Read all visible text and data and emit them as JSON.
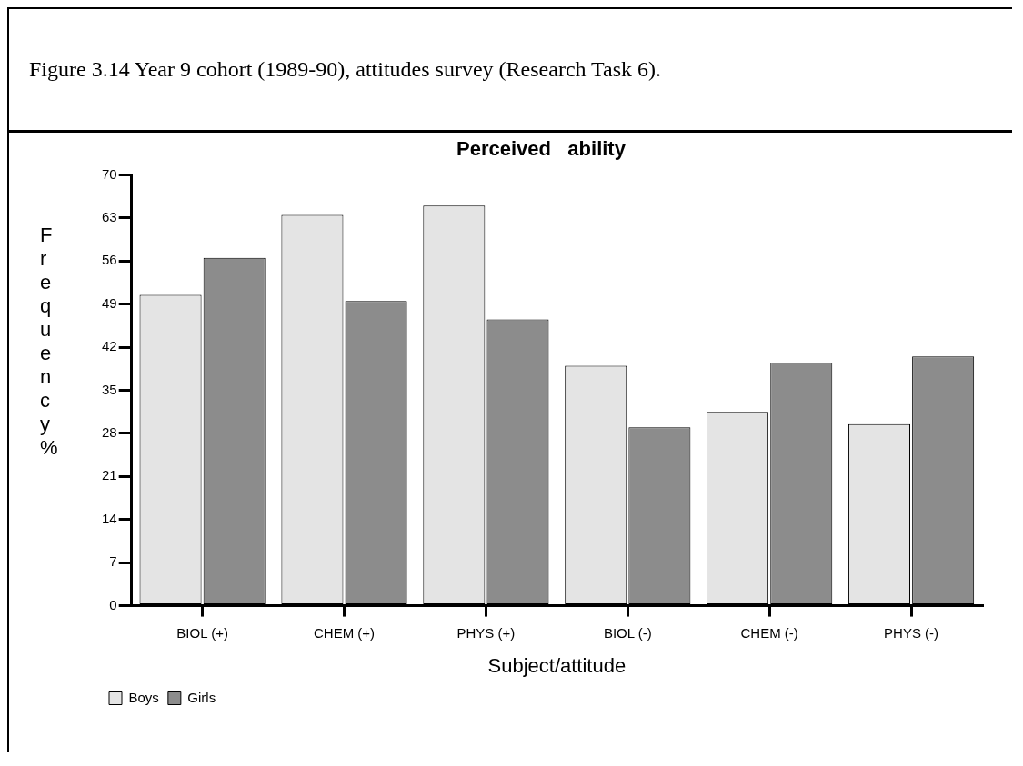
{
  "chart_data": {
    "type": "bar",
    "title": "Perceived   ability",
    "xlabel": "Subject/attitude",
    "ylabel": "Frequency %",
    "annotations": [
      "Figure 3.14  Year 9 cohort (1989-90), attitudes survey (Research Task 6)."
    ],
    "categories": [
      "BIOL (+)",
      "CHEM (+)",
      "PHYS (+)",
      "BIOL (-)",
      "CHEM (-)",
      "PHYS (-)"
    ],
    "series": [
      {
        "name": "Boys",
        "color": "#e4e4e4",
        "values": [
          50.5,
          63.5,
          65,
          39,
          31.5,
          29.5
        ]
      },
      {
        "name": "Girls",
        "color": "#8c8c8c",
        "values": [
          56.5,
          49.5,
          46.5,
          29,
          39.5,
          40.5
        ]
      }
    ],
    "ylim": [
      0,
      70
    ],
    "yticks": [
      0,
      7,
      14,
      21,
      28,
      35,
      42,
      49,
      56,
      63,
      70
    ],
    "grid": false,
    "legend": "bottom left"
  }
}
